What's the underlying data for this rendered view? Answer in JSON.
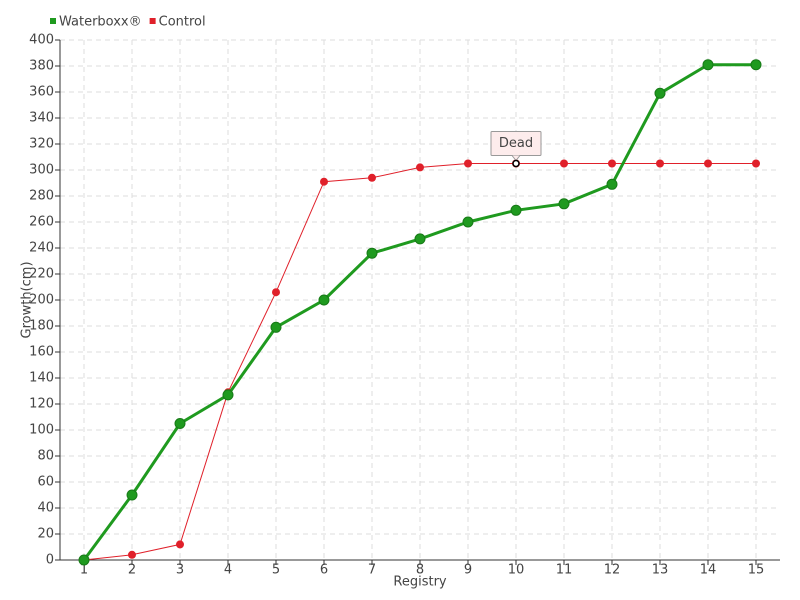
{
  "chart_data": {
    "type": "line",
    "x_label": "Registry",
    "y_label": "Growth(cm)",
    "categories": [
      "1",
      "2",
      "3",
      "4",
      "5",
      "6",
      "7",
      "8",
      "9",
      "10",
      "11",
      "12",
      "13",
      "14",
      "15"
    ],
    "series": [
      {
        "name": "Waterboxx®",
        "color": "#1f9a1f",
        "values": [
          0,
          50,
          105,
          127,
          179,
          200,
          236,
          247,
          260,
          269,
          274,
          289,
          359,
          381,
          381
        ]
      },
      {
        "name": "Control",
        "color": "#e0202a",
        "values": [
          0,
          4,
          12,
          129,
          206,
          291,
          294,
          302,
          305,
          305,
          305,
          305,
          305,
          305,
          305
        ]
      }
    ],
    "ylim": [
      0,
      400
    ],
    "yticks": [
      0,
      20,
      40,
      60,
      80,
      100,
      120,
      140,
      160,
      180,
      200,
      220,
      240,
      260,
      280,
      300,
      320,
      340,
      360,
      380,
      400
    ],
    "grid": true,
    "legend": "top-left",
    "annotations": [
      {
        "text": "Dead",
        "category": "10",
        "series": 1
      }
    ]
  }
}
